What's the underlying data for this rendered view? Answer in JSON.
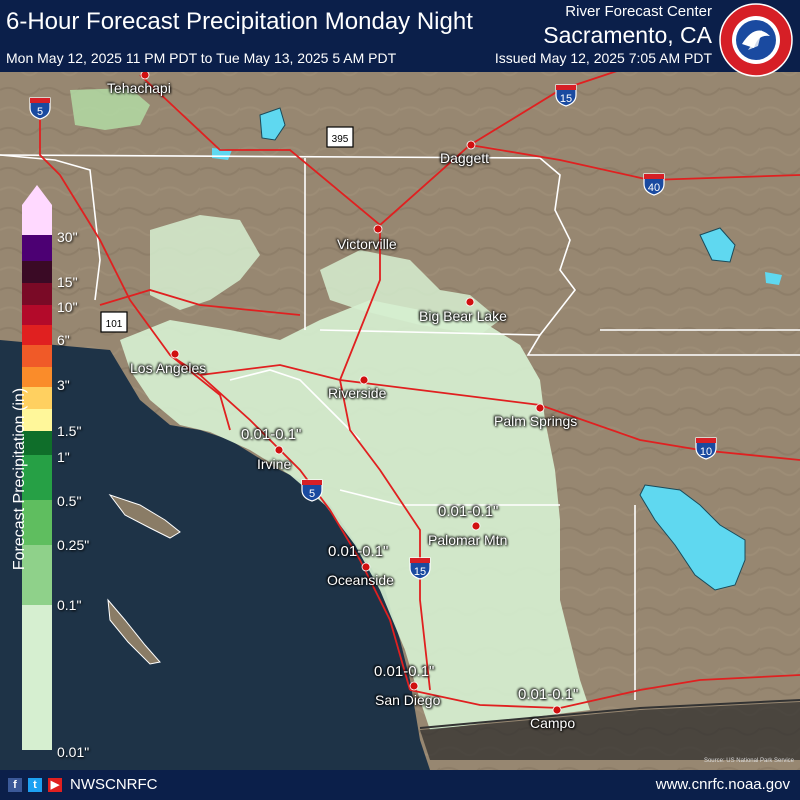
{
  "header": {
    "title": "6-Hour Forecast Precipitation Monday Night",
    "valid_time": "Mon May 12, 2025 11 PM PDT to Tue May 13, 2025 5 AM PDT",
    "rfc_name": "River Forecast Center",
    "rfc_location": "Sacramento, CA",
    "issued": "Issued May 12, 2025 7:05 AM PDT"
  },
  "legend": {
    "title": "Forecast Precipitation (in)",
    "labels": [
      "30\"",
      "15\"",
      "10\"",
      "6\"",
      "3\"",
      "1.5\"",
      "1\"",
      "0.5\"",
      "0.25\"",
      "0.1\"",
      "0.01\""
    ],
    "colors": [
      "#ffd9ff",
      "#4c0073",
      "#3a0a25",
      "#7a0a26",
      "#b30a2a",
      "#e02020",
      "#f05a28",
      "#fa8c2a",
      "#ffd060",
      "#fff79a",
      "#0f6e2a",
      "#26a045",
      "#5fbe5f",
      "#8fd18a",
      "#b4e0a8",
      "#d6efd0"
    ]
  },
  "cities": [
    "Tehachapi",
    "Daggett",
    "Victorville",
    "Big Bear Lake",
    "Los Angeles",
    "Riverside",
    "Palm Springs",
    "Irvine",
    "Palomar Mtn",
    "Oceanside",
    "San Diego",
    "Campo"
  ],
  "amounts": [
    "0.01-0.1\"",
    "0.01-0.1\"",
    "0.01-0.1\"",
    "0.01-0.1\"",
    "0.01-0.1\""
  ],
  "shields": {
    "interstates": [
      "5",
      "15",
      "40",
      "10",
      "5",
      "15"
    ],
    "routes": [
      "395",
      "101"
    ]
  },
  "footer": {
    "handle": "NWSCNRFC",
    "url": "www.cnrfc.noaa.gov"
  },
  "source": "Source: US National Park Service",
  "logo": "NATIONAL WEATHER SERVICE",
  "colors": {
    "header_bg": "#0b1f4a",
    "land": "#9a8a72",
    "ocean": "#1e3347",
    "precip_light": "#d6efd0",
    "highway": "#e02020",
    "lakes": "#5fd8f0"
  }
}
